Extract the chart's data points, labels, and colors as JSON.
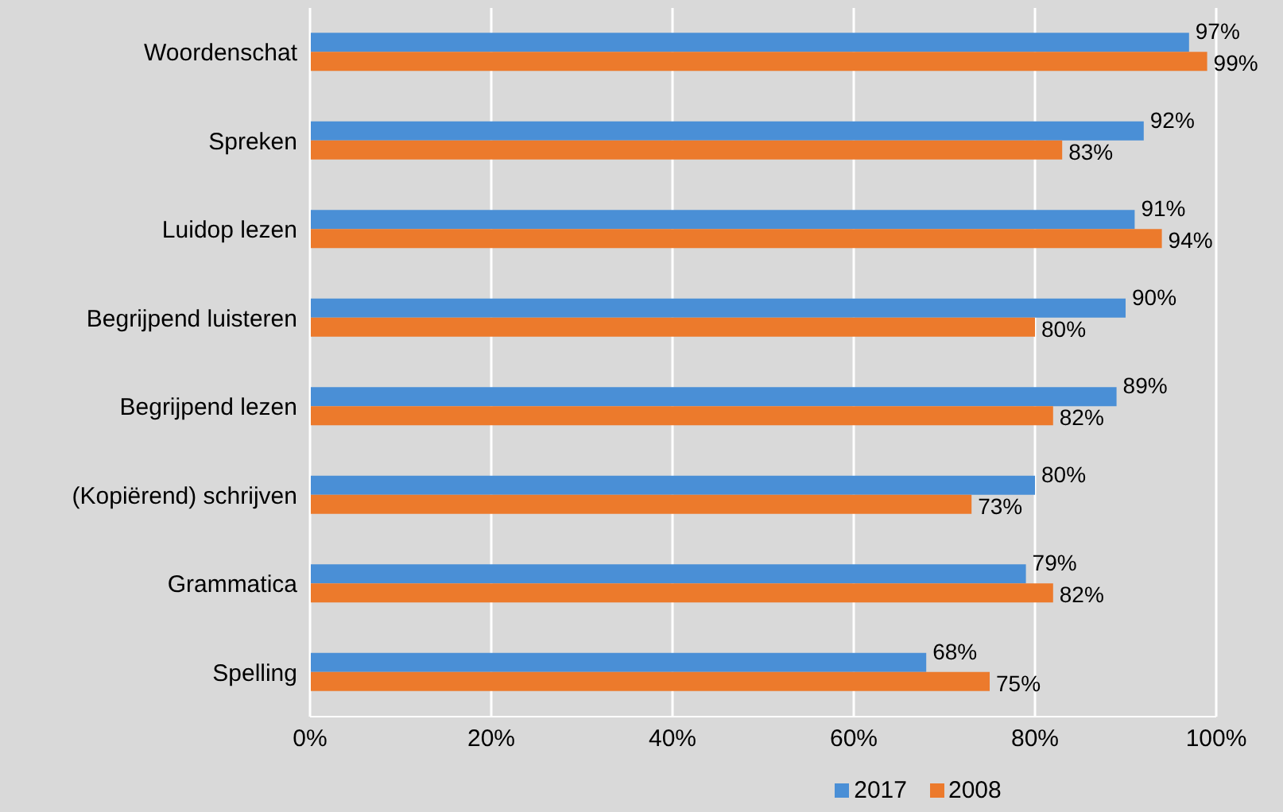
{
  "chart_data": {
    "type": "bar",
    "orientation": "horizontal",
    "categories": [
      "Woordenschat",
      "Spreken",
      "Luidop lezen",
      "Begrijpend luisteren",
      "Begrijpend lezen",
      "(Kopiërend) schrijven",
      "Grammatica",
      "Spelling"
    ],
    "series": [
      {
        "name": "2017",
        "color": "#4a8fd6",
        "values": [
          97,
          92,
          91,
          90,
          89,
          80,
          79,
          68
        ],
        "value_labels": [
          "97%",
          "92%",
          "91%",
          "90%",
          "89%",
          "80%",
          "79%",
          "68%"
        ]
      },
      {
        "name": "2008",
        "color": "#ec7a2c",
        "values": [
          99,
          83,
          94,
          80,
          82,
          73,
          82,
          75
        ],
        "value_labels": [
          "99%",
          "83%",
          "94%",
          "80%",
          "82%",
          "73%",
          "82%",
          "75%"
        ]
      }
    ],
    "xlim": [
      0,
      100
    ],
    "xticks": [
      {
        "value": 0,
        "label": "0%"
      },
      {
        "value": 20,
        "label": "20%"
      },
      {
        "value": 40,
        "label": "40%"
      },
      {
        "value": 60,
        "label": "60%"
      },
      {
        "value": 80,
        "label": "80%"
      },
      {
        "value": 100,
        "label": "100%"
      }
    ],
    "grid": "x",
    "legend": "bottom"
  }
}
